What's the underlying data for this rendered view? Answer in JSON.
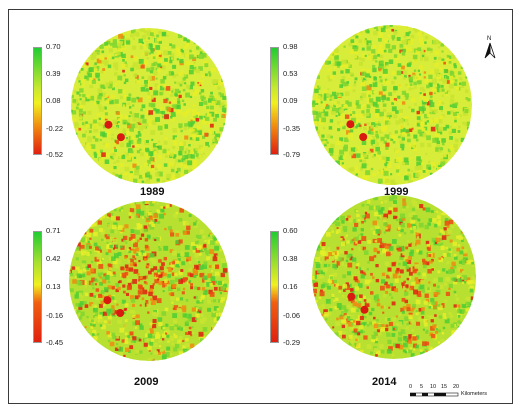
{
  "panels": [
    {
      "year": "1989",
      "ticks": [
        "0.70",
        "0.39",
        "0.08",
        "-0.22",
        "-0.52"
      ],
      "urban_intensity": 0.15
    },
    {
      "year": "1999",
      "ticks": [
        "0.98",
        "0.53",
        "0.09",
        "-0.35",
        "-0.79"
      ],
      "urban_intensity": 0.1
    },
    {
      "year": "2009",
      "ticks": [
        "0.71",
        "0.42",
        "0.13",
        "-0.16",
        "-0.45"
      ],
      "urban_intensity": 0.85
    },
    {
      "year": "2014",
      "ticks": [
        "0.60",
        "0.38",
        "0.16",
        "-0.06",
        "-0.29"
      ],
      "urban_intensity": 0.75
    }
  ],
  "north_arrow": {
    "label": "N"
  },
  "scale_bar": {
    "values": [
      "0",
      "5",
      "10",
      "15",
      "20"
    ],
    "unit": "Kilometers"
  },
  "colors": {
    "high": "#22cc33",
    "mid": "#f0f020",
    "low": "#e02010"
  }
}
